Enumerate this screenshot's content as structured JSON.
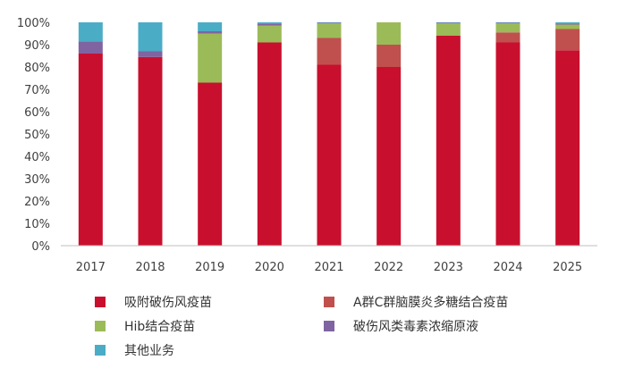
{
  "chart_data": {
    "type": "bar",
    "stacked": true,
    "categories": [
      "2017",
      "2018",
      "2019",
      "2020",
      "2021",
      "2022",
      "2023",
      "2024",
      "2025"
    ],
    "series": [
      {
        "name": "吸附破伤风疫苗",
        "color": "#C8102E",
        "values": [
          86,
          84.5,
          73,
          91,
          81,
          80,
          94,
          91,
          87.5
        ]
      },
      {
        "name": "A群C群脑膜炎多糖结合疫苗",
        "color": "#C0504D",
        "values": [
          0,
          0,
          0,
          0,
          12,
          10,
          0,
          4.5,
          9.5
        ]
      },
      {
        "name": "Hib结合疫苗",
        "color": "#9BBB59",
        "values": [
          0,
          0,
          22,
          7.5,
          6.5,
          10,
          5.5,
          4,
          2
        ]
      },
      {
        "name": "破伤风类毒素浓缩原液",
        "color": "#8064A2",
        "values": [
          5.5,
          2.5,
          1,
          1,
          0.3,
          0,
          0.3,
          0.3,
          0.5
        ]
      },
      {
        "name": "其他业务",
        "color": "#4BACC6",
        "values": [
          8.5,
          13,
          4,
          0.5,
          0.2,
          0,
          0.2,
          0.2,
          0.5
        ]
      }
    ],
    "y_ticks": [
      "0%",
      "10%",
      "20%",
      "30%",
      "40%",
      "50%",
      "60%",
      "70%",
      "80%",
      "90%",
      "100%"
    ],
    "ylim": [
      0,
      100
    ],
    "grid": false,
    "legend_position": "bottom"
  }
}
